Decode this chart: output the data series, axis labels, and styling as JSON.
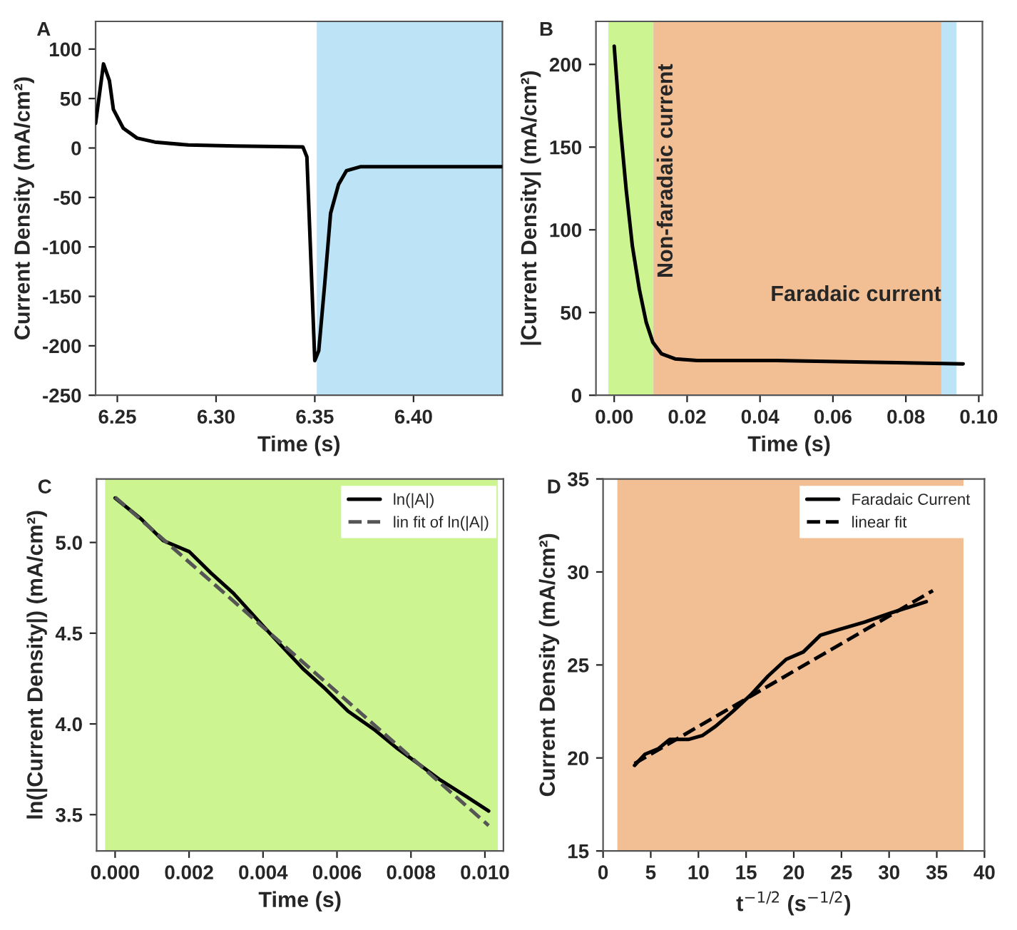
{
  "chart_data": [
    {
      "type": "line",
      "title": "A",
      "xlabel": "Time (s)",
      "ylabel": "Current Density (mA/cm²)",
      "xlim": [
        6.239,
        6.445
      ],
      "ylim": [
        -250,
        128
      ],
      "xticks": [
        6.25,
        {
          "value": 6.3,
          "label": "6.30"
        },
        6.35,
        {
          "value": 6.4,
          "label": "6.40"
        }
      ],
      "yticks": [
        -250,
        -200,
        -150,
        -100,
        -50,
        0,
        50,
        100
      ],
      "grid": false,
      "legend": false,
      "bands": [
        {
          "axis": "x",
          "from": 6.351,
          "to": 6.445,
          "color": "#bde3f7"
        }
      ],
      "series": [
        {
          "color": "#000000",
          "line_style": "solid",
          "x": [
            6.239,
            6.243,
            6.246,
            6.248,
            6.253,
            6.26,
            6.269,
            6.286,
            6.31,
            6.344,
            6.346,
            6.35,
            6.352,
            6.355,
            6.358,
            6.362,
            6.366,
            6.373,
            6.392,
            6.445
          ],
          "values": [
            25,
            85,
            68,
            39,
            20,
            10,
            6,
            3,
            2,
            1,
            -9,
            -215,
            -205,
            -138,
            -66,
            -37,
            -23,
            -19,
            -19,
            -19
          ]
        }
      ]
    },
    {
      "type": "line",
      "title": "B",
      "xlabel": "Time (s)",
      "ylabel": "|Current Density| (mA/cm²)",
      "xlim": [
        -0.005,
        0.101
      ],
      "ylim": [
        0,
        226
      ],
      "xticks": [
        {
          "value": 0,
          "label": "0.00"
        },
        {
          "value": 0.02,
          "label": "0.02"
        },
        {
          "value": 0.04,
          "label": "0.04"
        },
        {
          "value": 0.06,
          "label": "0.06"
        },
        {
          "value": 0.08,
          "label": "0.08"
        },
        {
          "value": 0.1,
          "label": "0.10"
        }
      ],
      "yticks": [
        0,
        50,
        100,
        150,
        200
      ],
      "grid": false,
      "legend": false,
      "bands": [
        {
          "axis": "x",
          "from": -0.0016,
          "to": 0.0939,
          "color": "#bde3f7"
        },
        {
          "axis": "x",
          "from": -0.0016,
          "to": 0.0108,
          "color": "#ccf592",
          "label": "Non-faradaic current"
        },
        {
          "axis": "x",
          "from": 0.0108,
          "to": 0.0897,
          "color": "#f2be94",
          "label": "Faradaic current"
        }
      ],
      "series": [
        {
          "color": "#000000",
          "line_style": "solid",
          "x": [
            0,
            0.0015,
            0.0033,
            0.005,
            0.0069,
            0.0088,
            0.0106,
            0.013,
            0.0167,
            0.0228,
            0.0447,
            0.069,
            0.0957
          ],
          "values": [
            211,
            167,
            124,
            90,
            64,
            44,
            32,
            25,
            22,
            21,
            21,
            20,
            19
          ]
        }
      ]
    },
    {
      "type": "line",
      "title": "C",
      "xlabel": "Time (s)",
      "ylabel": "ln(|Current Density|) (mA/cm²)",
      "xlim": [
        -0.0005,
        0.0105
      ],
      "ylim": [
        3.3,
        5.35
      ],
      "xticks": [
        {
          "value": 0,
          "label": "0.000"
        },
        {
          "value": 0.002,
          "label": "0.002"
        },
        {
          "value": 0.004,
          "label": "0.004"
        },
        {
          "value": 0.006,
          "label": "0.006"
        },
        {
          "value": 0.008,
          "label": "0.008"
        },
        {
          "value": 0.01,
          "label": "0.010"
        }
      ],
      "yticks": [
        {
          "value": 3.5,
          "label": "3.5"
        },
        {
          "value": 4,
          "label": "4.0"
        },
        {
          "value": 4.5,
          "label": "4.5"
        },
        {
          "value": 5,
          "label": "5.0"
        }
      ],
      "grid": false,
      "legend": "top right",
      "bands": [
        {
          "axis": "x",
          "from": -0.00027,
          "to": 0.01035,
          "color": "#ccf592"
        }
      ],
      "series": [
        {
          "name": "ln(|A|)",
          "color": "#000000",
          "line_style": "solid",
          "x": [
            0,
            0.0007,
            0.0013,
            0.002,
            0.0026,
            0.0032,
            0.004,
            0.0045,
            0.0051,
            0.0057,
            0.0063,
            0.007,
            0.0076,
            0.0082,
            0.0088,
            0.0095,
            0.0101
          ],
          "values": [
            5.245,
            5.13,
            5.01,
            4.95,
            4.83,
            4.72,
            4.54,
            4.43,
            4.3,
            4.19,
            4.07,
            3.97,
            3.87,
            3.78,
            3.69,
            3.6,
            3.52
          ]
        },
        {
          "name": "lin fit of ln(|A|)",
          "color": "#555555",
          "line_style": "dashed",
          "x": [
            0,
            0.0101
          ],
          "values": [
            5.25,
            3.44
          ]
        }
      ]
    },
    {
      "type": "line",
      "title": "D",
      "xlabel": "t$^{−1/2}$ (s$^{−1/2}$)",
      "ylabel": "Current Density (mA/cm²)",
      "xlim": [
        0,
        40
      ],
      "ylim": [
        15,
        35
      ],
      "xticks": [
        0,
        5,
        10,
        15,
        20,
        25,
        30,
        35,
        40
      ],
      "yticks": [
        15,
        20,
        25,
        30,
        35
      ],
      "grid": false,
      "legend": "top right",
      "bands": [
        {
          "axis": "x",
          "from": 1.5,
          "to": 37.8,
          "color": "#f2be94"
        }
      ],
      "series": [
        {
          "name": "Faradaic Current",
          "color": "#000000",
          "line_style": "solid",
          "x": [
            3.3,
            4.4,
            5.8,
            7,
            9,
            10.4,
            11.8,
            13.6,
            15.5,
            17.3,
            19.2,
            21,
            22.8,
            24.7,
            27.4,
            30.2,
            33.9
          ],
          "values": [
            19.6,
            20.2,
            20.5,
            21.0,
            21.0,
            21.2,
            21.7,
            22.5,
            23.4,
            24.4,
            25.3,
            25.7,
            26.6,
            26.9,
            27.3,
            27.8,
            28.4
          ]
        },
        {
          "name": "linear fit",
          "color": "#000000",
          "line_style": "dashed",
          "x": [
            3.3,
            34.6
          ],
          "values": [
            19.7,
            29.0
          ]
        }
      ]
    }
  ]
}
